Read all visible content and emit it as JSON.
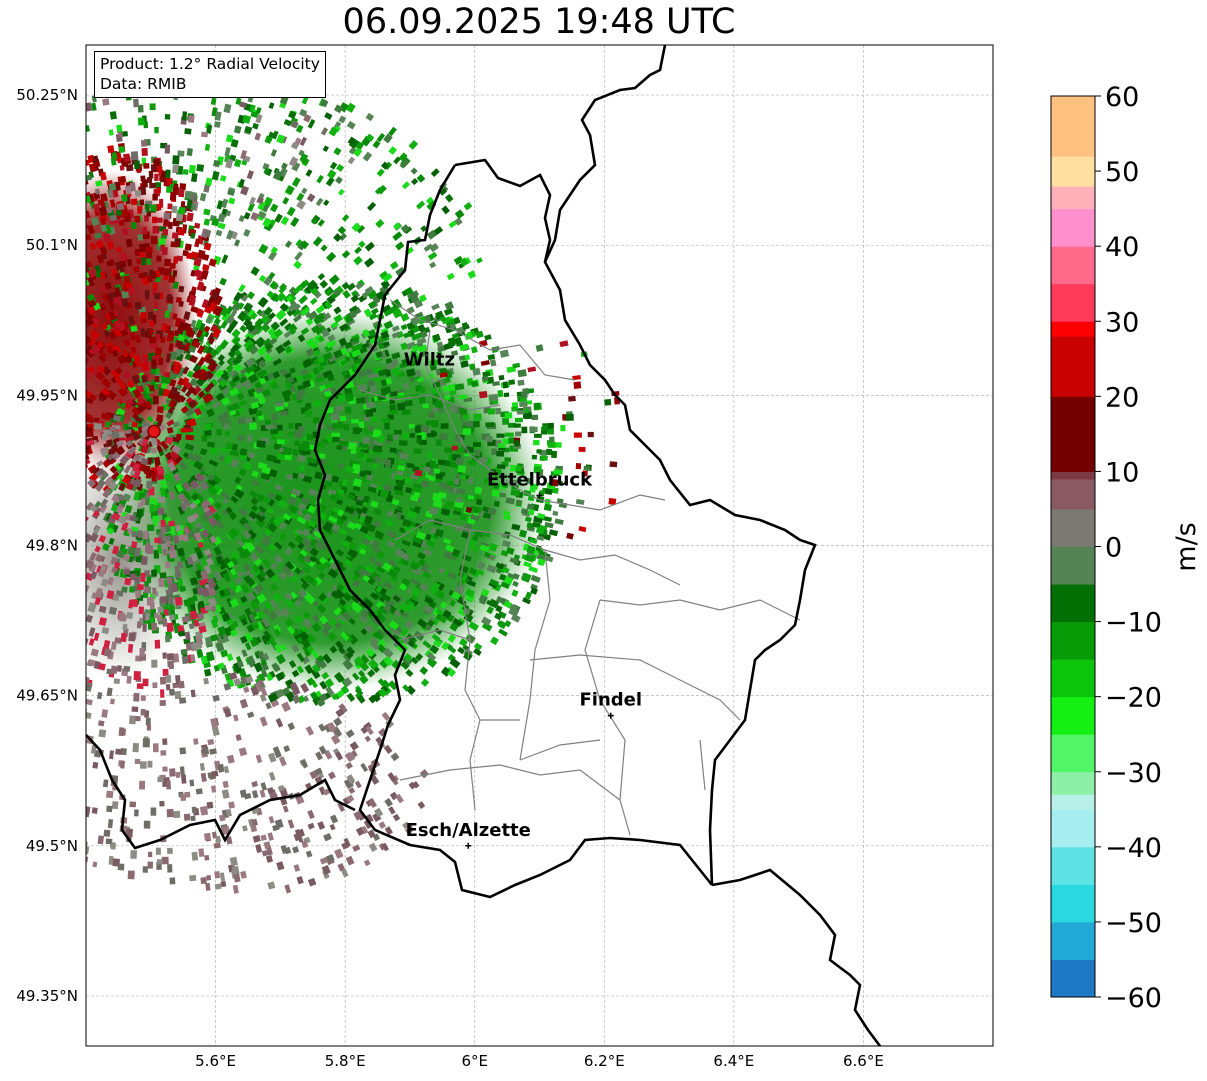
{
  "title": "06.09.2025 19:48 UTC",
  "info": {
    "product": "Product: 1.2° Radial Velocity",
    "data_source": "Data: RMIB"
  },
  "map": {
    "lon_range": [
      5.4,
      6.8
    ],
    "lat_range": [
      49.3,
      50.3
    ],
    "lon_ticks": [
      {
        "value": 5.6,
        "label": "5.6°E"
      },
      {
        "value": 5.8,
        "label": "5.8°E"
      },
      {
        "value": 6.0,
        "label": "6°E"
      },
      {
        "value": 6.2,
        "label": "6.2°E"
      },
      {
        "value": 6.4,
        "label": "6.4°E"
      },
      {
        "value": 6.6,
        "label": "6.6°E"
      }
    ],
    "lat_ticks": [
      {
        "value": 50.25,
        "label": "50.25°N"
      },
      {
        "value": 50.1,
        "label": "50.1°N"
      },
      {
        "value": 49.95,
        "label": "49.95°N"
      },
      {
        "value": 49.8,
        "label": "49.8°N"
      },
      {
        "value": 49.65,
        "label": "49.65°N"
      },
      {
        "value": 49.5,
        "label": "49.5°N"
      },
      {
        "value": 49.35,
        "label": "49.35°N"
      }
    ],
    "radar_site": {
      "lon": 5.505,
      "lat": 49.914
    },
    "cities": [
      {
        "name": "Wiltz",
        "lon": 5.93,
        "lat": 49.97,
        "marker": false
      },
      {
        "name": "Ettelbruck",
        "lon": 6.1,
        "lat": 49.85,
        "marker": true
      },
      {
        "name": "Findel",
        "lon": 6.21,
        "lat": 49.63,
        "marker": true
      },
      {
        "name": "Esch/Alzette",
        "lon": 5.99,
        "lat": 49.5,
        "marker": true
      }
    ]
  },
  "colorbar": {
    "label": "m/s",
    "min": -60,
    "max": 60,
    "ticks": [
      {
        "value": 60,
        "label": "60"
      },
      {
        "value": 50,
        "label": "50"
      },
      {
        "value": 40,
        "label": "40"
      },
      {
        "value": 30,
        "label": "30"
      },
      {
        "value": 20,
        "label": "20"
      },
      {
        "value": 10,
        "label": "10"
      },
      {
        "value": 0,
        "label": "0"
      },
      {
        "value": -10,
        "label": "−10"
      },
      {
        "value": -20,
        "label": "−20"
      },
      {
        "value": -30,
        "label": "−30"
      },
      {
        "value": -40,
        "label": "−40"
      },
      {
        "value": -50,
        "label": "−50"
      },
      {
        "value": -60,
        "label": "−60"
      }
    ],
    "stops": [
      {
        "v": -60,
        "color": "#1f78c4"
      },
      {
        "v": -55,
        "color": "#22a8d4"
      },
      {
        "v": -50,
        "color": "#2ad8e0"
      },
      {
        "v": -45,
        "color": "#5ee2e4"
      },
      {
        "v": -40,
        "color": "#a6eef0"
      },
      {
        "v": -35,
        "color": "#b8f0e8"
      },
      {
        "v": -33,
        "color": "#8ef0a8"
      },
      {
        "v": -30,
        "color": "#52f468"
      },
      {
        "v": -25,
        "color": "#14f014"
      },
      {
        "v": -20,
        "color": "#0bc40b"
      },
      {
        "v": -15,
        "color": "#079c07"
      },
      {
        "v": -10,
        "color": "#046f04"
      },
      {
        "v": -5,
        "color": "#558355"
      },
      {
        "v": 0,
        "color": "#7a7a72"
      },
      {
        "v": 5,
        "color": "#8a5a64"
      },
      {
        "v": 9,
        "color": "#7e3a44"
      },
      {
        "v": 10,
        "color": "#750000"
      },
      {
        "v": 20,
        "color": "#c80000"
      },
      {
        "v": 28,
        "color": "#fa0000"
      },
      {
        "v": 30,
        "color": "#ff3a5a"
      },
      {
        "v": 35,
        "color": "#ff6a8a"
      },
      {
        "v": 40,
        "color": "#ff90cc"
      },
      {
        "v": 45,
        "color": "#ffb0b8"
      },
      {
        "v": 48,
        "color": "#ffe0a0"
      },
      {
        "v": 52,
        "color": "#ffc080"
      },
      {
        "v": 60,
        "color": "#ff9a50"
      }
    ]
  }
}
